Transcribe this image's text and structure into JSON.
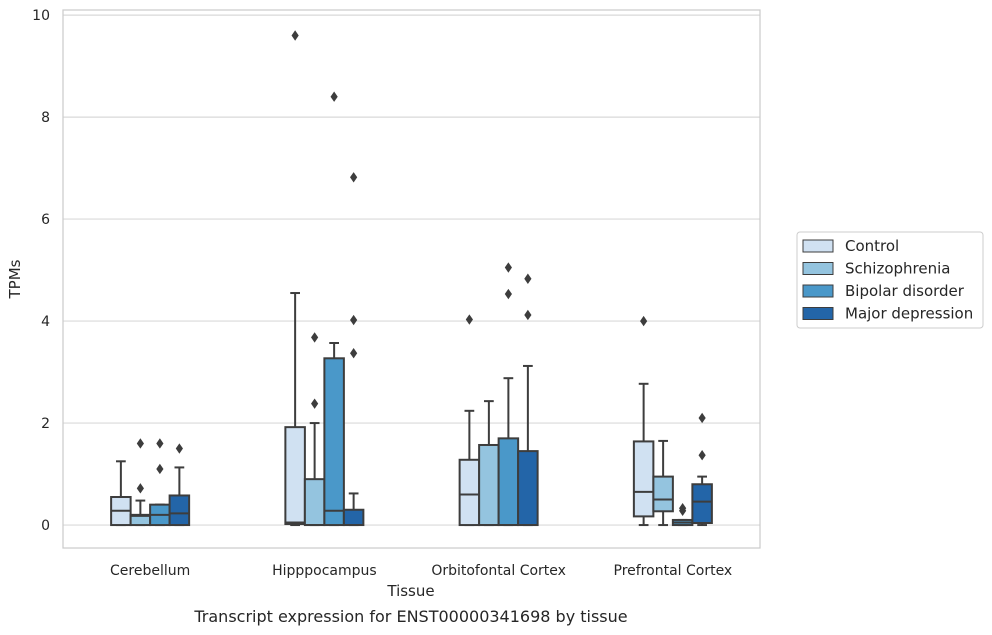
{
  "chart_data": {
    "type": "box",
    "title": "Transcript expression for ENST00000341698 by tissue",
    "xlabel": "Tissue",
    "ylabel": "TPMs",
    "ylim": [
      -0.45,
      10.1
    ],
    "yticks": [
      0,
      2,
      4,
      6,
      8,
      10
    ],
    "ytick_labels": [
      "0",
      "2",
      "4",
      "6",
      "8",
      "10"
    ],
    "grid": true,
    "legend_position": "right",
    "categories": [
      "Cerebellum",
      "Hipppocampus",
      "Orbitofontal Cortex",
      "Prefrontal Cortex"
    ],
    "series": [
      {
        "name": "Control",
        "color": "#d0e1f2",
        "boxes": [
          {
            "whislo": 0,
            "q1": 0,
            "med": 0.28,
            "q3": 0.55,
            "whishi": 1.25,
            "fliers": []
          },
          {
            "whislo": 0,
            "q1": 0.02,
            "med": 0.05,
            "q3": 1.92,
            "whishi": 4.55,
            "fliers": [
              9.6
            ]
          },
          {
            "whislo": 0,
            "q1": 0,
            "med": 0.6,
            "q3": 1.28,
            "whishi": 2.24,
            "fliers": [
              4.03
            ]
          },
          {
            "whislo": 0,
            "q1": 0.17,
            "med": 0.65,
            "q3": 1.64,
            "whishi": 2.77,
            "fliers": [
              4.0
            ]
          }
        ]
      },
      {
        "name": "Schizophrenia",
        "color": "#94c4df",
        "boxes": [
          {
            "whislo": 0,
            "q1": 0,
            "med": 0.18,
            "q3": 0.2,
            "whishi": 0.48,
            "fliers": [
              0.72,
              1.6
            ]
          },
          {
            "whislo": 0,
            "q1": 0,
            "med": 0.0,
            "q3": 0.9,
            "whishi": 2.0,
            "fliers": [
              2.38,
              3.68
            ]
          },
          {
            "whislo": 0,
            "q1": 0,
            "med": 0.0,
            "q3": 1.57,
            "whishi": 2.43,
            "fliers": []
          },
          {
            "whislo": 0,
            "q1": 0.27,
            "med": 0.5,
            "q3": 0.95,
            "whishi": 1.65,
            "fliers": []
          }
        ]
      },
      {
        "name": "Bipolar disorder",
        "color": "#4a98c9",
        "boxes": [
          {
            "whislo": 0,
            "q1": 0,
            "med": 0.2,
            "q3": 0.4,
            "whishi": 0.4,
            "fliers": [
              1.1,
              1.6
            ]
          },
          {
            "whislo": 0,
            "q1": 0,
            "med": 0.28,
            "q3": 3.27,
            "whishi": 3.57,
            "fliers": [
              8.4
            ]
          },
          {
            "whislo": 0,
            "q1": 0,
            "med": 0.0,
            "q3": 1.7,
            "whishi": 2.88,
            "fliers": [
              4.53,
              5.05
            ]
          },
          {
            "whislo": 0,
            "q1": 0,
            "med": 0.05,
            "q3": 0.1,
            "whishi": 0.1,
            "fliers": [
              0.28,
              0.33
            ]
          }
        ]
      },
      {
        "name": "Major depression",
        "color": "#2365a8",
        "boxes": [
          {
            "whislo": 0,
            "q1": 0,
            "med": 0.23,
            "q3": 0.58,
            "whishi": 1.13,
            "fliers": [
              1.5
            ]
          },
          {
            "whislo": 0,
            "q1": 0,
            "med": 0.0,
            "q3": 0.3,
            "whishi": 0.62,
            "fliers": [
              3.37,
              4.02,
              6.82
            ]
          },
          {
            "whislo": 0,
            "q1": 0,
            "med": 0.0,
            "q3": 1.45,
            "whishi": 3.12,
            "fliers": [
              4.12,
              4.83
            ]
          },
          {
            "whislo": 0,
            "q1": 0.04,
            "med": 0.46,
            "q3": 0.8,
            "whishi": 0.95,
            "fliers": [
              1.37,
              2.1
            ]
          }
        ]
      }
    ]
  }
}
